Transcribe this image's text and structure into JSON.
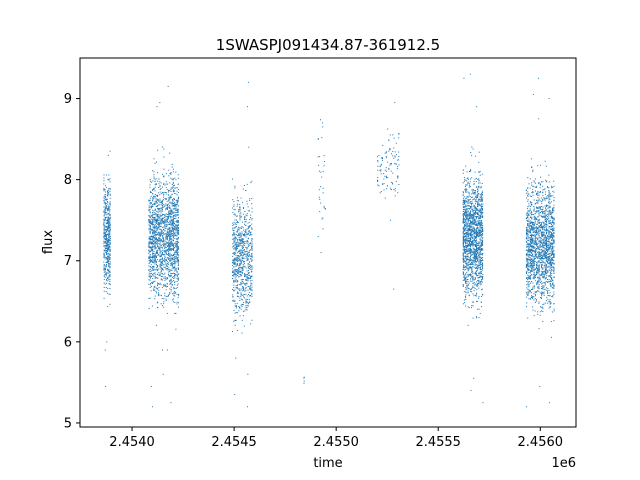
{
  "chart_data": {
    "type": "scatter",
    "title": "1SWASPJ091434.87-361912.5",
    "xlabel": "time",
    "ylabel": "flux",
    "x_offset_label": "1e6",
    "xlim": [
      2453745,
      2456175
    ],
    "ylim": [
      4.95,
      9.5
    ],
    "xticks": [
      2.454,
      2.4545,
      2.455,
      2.4555,
      2.456
    ],
    "xtick_labels": [
      "2.4540",
      "2.4545",
      "2.4550",
      "2.4555",
      "2.4560"
    ],
    "yticks": [
      5,
      6,
      7,
      8,
      9
    ],
    "ytick_labels": [
      "5",
      "6",
      "7",
      "8",
      "9"
    ],
    "grid": false,
    "marker_color": "#1f77b4",
    "series": [
      {
        "clusters": [
          {
            "x": [
              2453860,
              2453895
            ],
            "y_mean": 7.3,
            "y_spread": 0.55,
            "n": 500,
            "outliers": [
              6.0,
              5.9,
              5.45,
              8.3,
              8.35
            ]
          },
          {
            "x": [
              2454080,
              2454230
            ],
            "y_mean": 7.3,
            "y_spread": 0.6,
            "n": 1800,
            "outliers": [
              8.9,
              9.15,
              5.45,
              5.2,
              5.25,
              5.9,
              5.9,
              8.95,
              5.6
            ]
          },
          {
            "x": [
              2454490,
              2454590
            ],
            "y_mean": 7.05,
            "y_spread": 0.6,
            "n": 800,
            "outliers": [
              9.2,
              5.2,
              5.35,
              5.6,
              8.9,
              8.4,
              5.8
            ]
          },
          {
            "x": [
              2454840,
              2454845
            ],
            "y_mean": 5.55,
            "y_spread": 0.08,
            "n": 4,
            "outliers": []
          },
          {
            "x": [
              2454910,
              2454950
            ],
            "y_mean": 7.9,
            "y_spread": 0.6,
            "n": 30,
            "outliers": [
              8.7,
              8.65,
              7.1
            ]
          },
          {
            "x": [
              2455200,
              2455310
            ],
            "y_mean": 8.2,
            "y_spread": 0.35,
            "n": 110,
            "outliers": [
              8.95,
              6.65,
              7.5
            ]
          },
          {
            "x": [
              2455620,
              2455720
            ],
            "y_mean": 7.3,
            "y_spread": 0.6,
            "n": 1600,
            "outliers": [
              9.3,
              9.25,
              5.4,
              5.25,
              5.55,
              8.9
            ]
          },
          {
            "x": [
              2455930,
              2456070
            ],
            "y_mean": 7.2,
            "y_spread": 0.6,
            "n": 1800,
            "outliers": [
              9.25,
              9.0,
              5.2,
              5.25,
              5.45,
              9.05,
              8.75
            ]
          }
        ]
      }
    ]
  }
}
